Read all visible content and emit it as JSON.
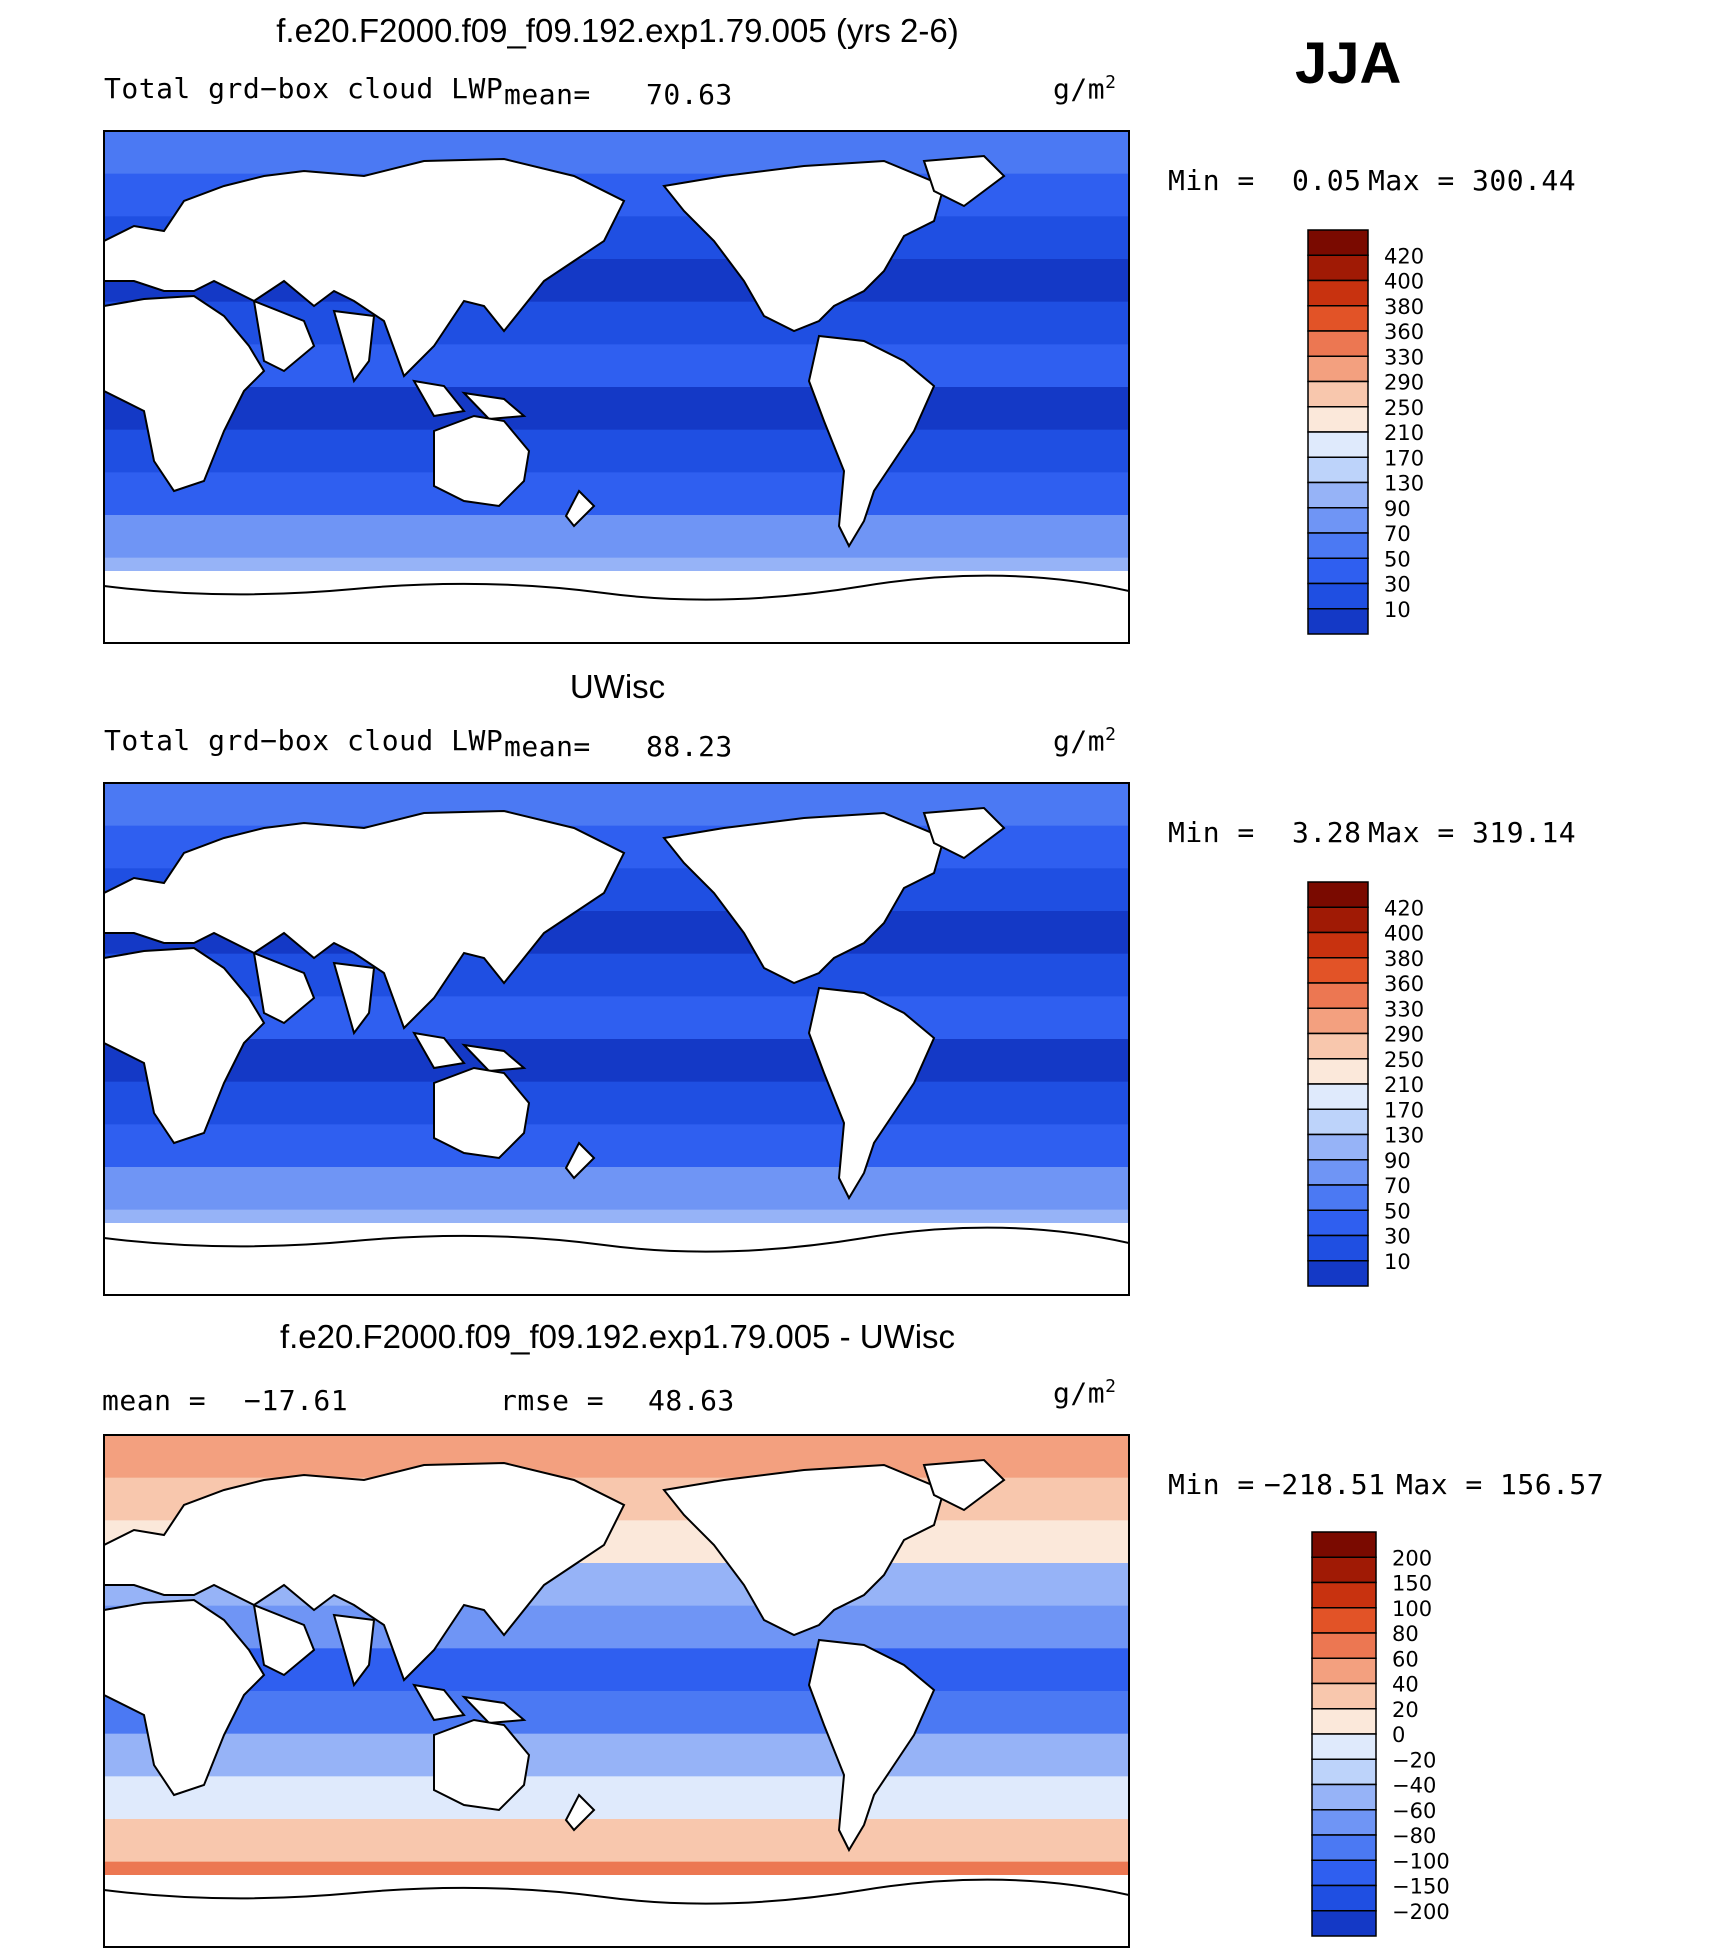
{
  "season": "JJA",
  "units": "g/m",
  "units_exp": "2",
  "colors": {
    "lwp_scale": [
      "#0a1c82",
      "#0c2aa6",
      "#1439c6",
      "#1f4fe2",
      "#2f5ff0",
      "#4b79f3",
      "#6f95f5",
      "#96b3f7",
      "#bdd3fa",
      "#dfeafc",
      "#fbe8da",
      "#f8c7ad",
      "#f3a07f",
      "#ec7752",
      "#e25327",
      "#c8320f",
      "#a01a05",
      "#7a0a00"
    ],
    "diff_scale": [
      "#0a1c82",
      "#0c2aa6",
      "#1439c6",
      "#1f4fe2",
      "#2f5ff0",
      "#4b79f3",
      "#6f95f5",
      "#96b3f7",
      "#bdd3fa",
      "#dfeafc",
      "#fbe8da",
      "#f8c7ad",
      "#f3a07f",
      "#ec7752",
      "#e25327",
      "#c8320f",
      "#a01a05",
      "#7a0a00"
    ],
    "land": "#ffffff"
  },
  "chart_data": [
    {
      "type": "heatmap",
      "title": "f.e20.F2000.f09_f09.192.exp1.79.005 (yrs 2-6)",
      "field_label": "Total grd−box cloud LWP",
      "mean_label": "mean=",
      "mean": "70.63",
      "min_label": "Min =",
      "min": "0.05",
      "max_label": "Max =",
      "max": "300.44",
      "colorbar_levels": [
        "420",
        "400",
        "380",
        "360",
        "330",
        "290",
        "250",
        "210",
        "170",
        "130",
        "90",
        "70",
        "50",
        "30",
        "10"
      ]
    },
    {
      "type": "heatmap",
      "title": "UWisc",
      "field_label": "Total grd−box cloud LWP",
      "mean_label": "mean=",
      "mean": "88.23",
      "min_label": "Min =",
      "min": "3.28",
      "max_label": "Max =",
      "max": "319.14",
      "colorbar_levels": [
        "420",
        "400",
        "380",
        "360",
        "330",
        "290",
        "250",
        "210",
        "170",
        "130",
        "90",
        "70",
        "50",
        "30",
        "10"
      ]
    },
    {
      "type": "heatmap",
      "title": "f.e20.F2000.f09_f09.192.exp1.79.005 - UWisc",
      "mean_label": "mean =",
      "mean": "−17.61",
      "rmse_label": "rmse =",
      "rmse": "48.63",
      "min_label": "Min =",
      "min": "−218.51",
      "max_label": "Max =",
      "max": "156.57",
      "colorbar_levels": [
        "200",
        "150",
        "100",
        "80",
        "60",
        "40",
        "20",
        "0",
        "−20",
        "−40",
        "−60",
        "−80",
        "−100",
        "−150",
        "−200"
      ]
    }
  ]
}
